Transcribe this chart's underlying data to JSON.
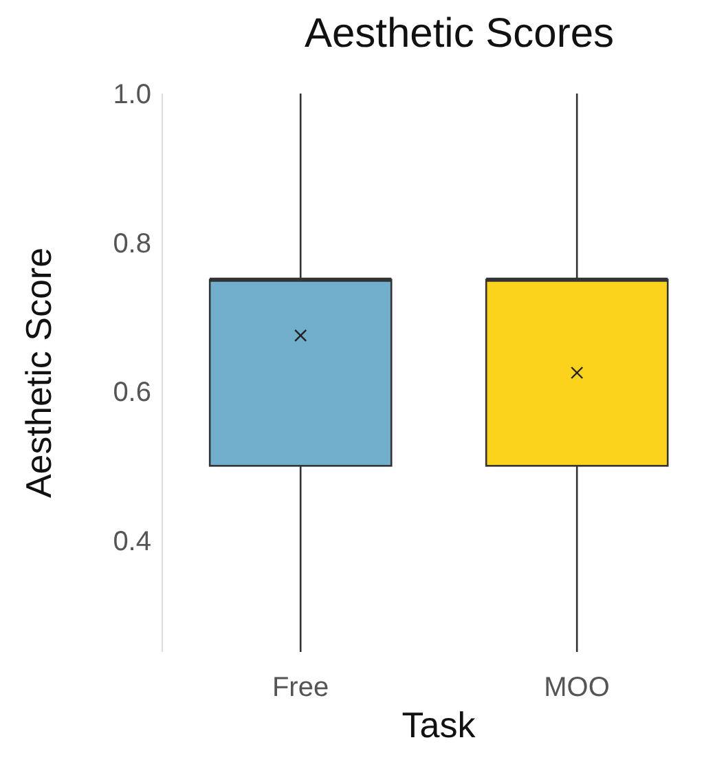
{
  "chart_data": {
    "type": "box",
    "title": "Aesthetic Scores",
    "xlabel": "Task",
    "ylabel": "Aesthetic Score",
    "categories": [
      "Free",
      "MOO"
    ],
    "colors": [
      "#72afcd",
      "#fcd31c"
    ],
    "boxes": [
      {
        "low": 0.25,
        "q1": 0.5,
        "median": 0.75,
        "q3": 0.75,
        "high": 1.0,
        "mean": 0.675
      },
      {
        "low": 0.25,
        "q1": 0.5,
        "median": 0.75,
        "q3": 0.75,
        "high": 1.0,
        "mean": 0.625
      }
    ],
    "ylim": [
      0.25,
      1.0
    ],
    "yticks": [
      {
        "value": 0.4,
        "label": "0.4"
      },
      {
        "value": 0.6,
        "label": "0.6"
      },
      {
        "value": 0.8,
        "label": "0.8"
      },
      {
        "value": 1,
        "label": "1.0"
      }
    ]
  }
}
